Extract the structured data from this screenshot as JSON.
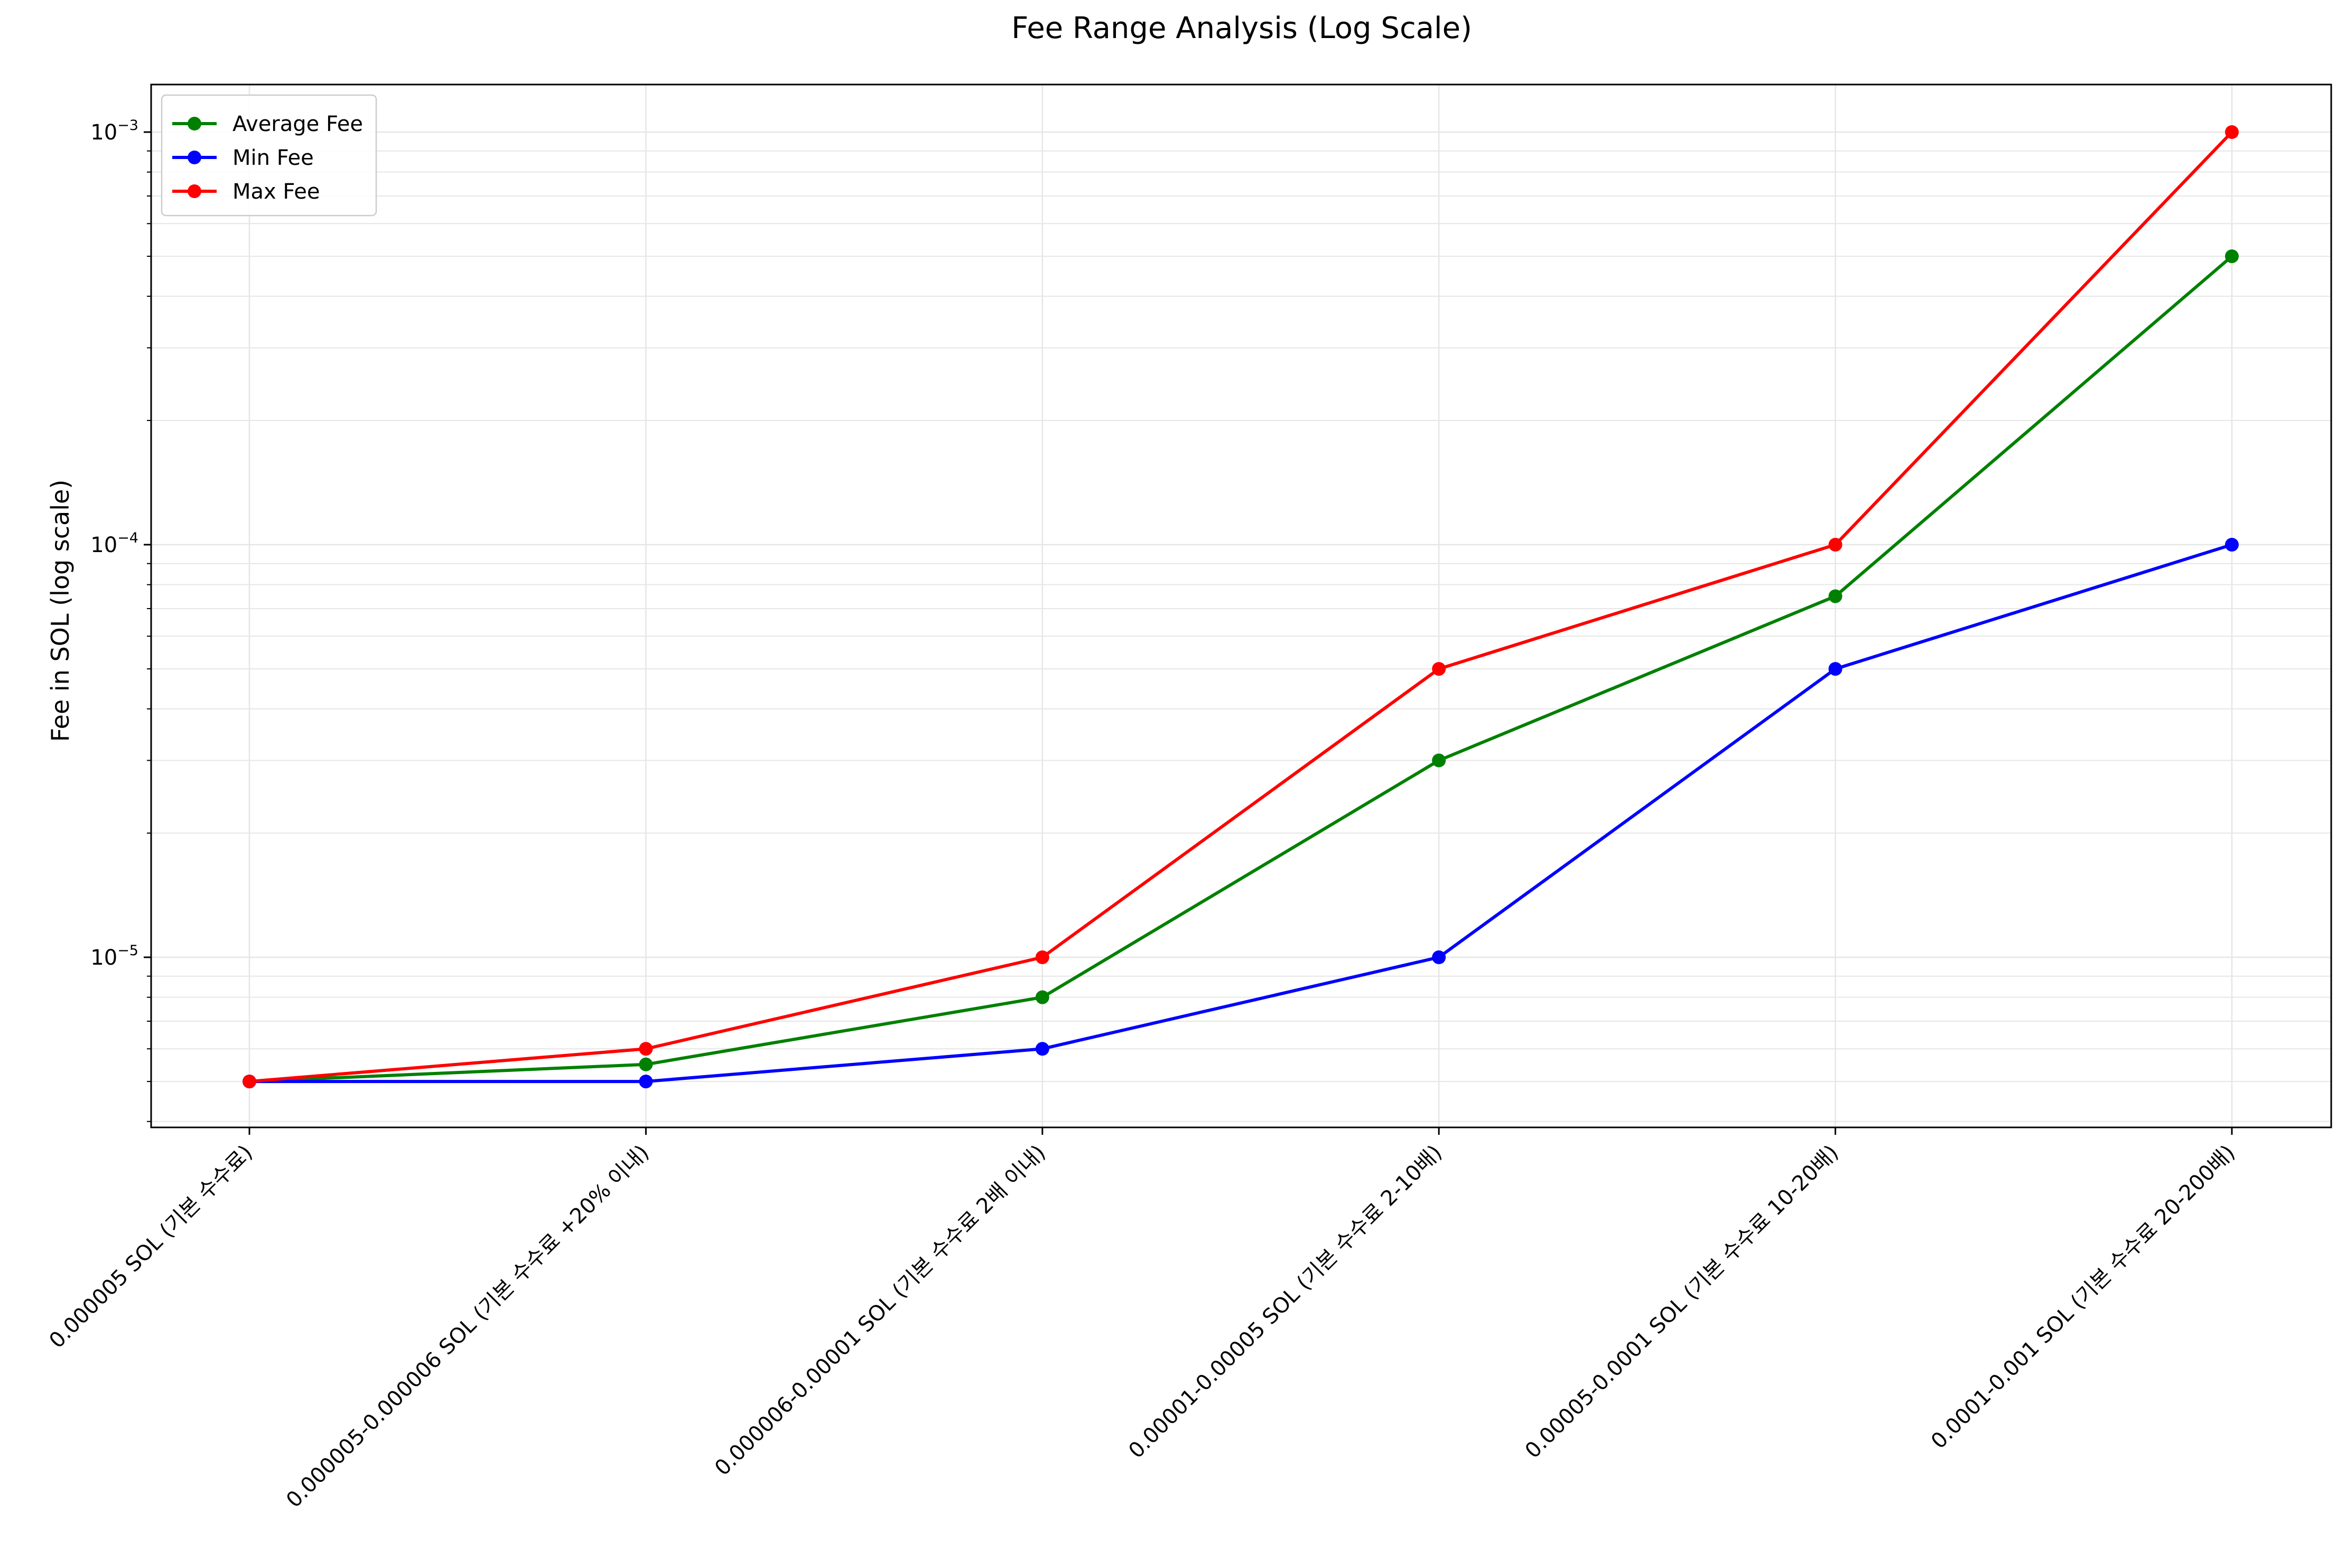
{
  "chart_data": {
    "type": "line",
    "title": "Fee Range Analysis (Log Scale)",
    "xlabel": "",
    "ylabel": "Fee in SOL (log scale)",
    "yscale": "log",
    "ylim": [
      3.8e-06,
      0.0013
    ],
    "grid": true,
    "legend_position": "top-left",
    "categories": [
      "0.000005 SOL (기본 수수료)",
      "0.000005-0.000006 SOL (기본 수수료 +20% 이내)",
      "0.000006-0.00001 SOL (기본 수수료 2배 이내)",
      "0.00001-0.00005 SOL (기본 수수료 2-10배)",
      "0.00005-0.0001 SOL (기본 수수료 10-20배)",
      "0.0001-0.001 SOL (기본 수수료 20-200배)"
    ],
    "series": [
      {
        "name": "Average Fee",
        "color": "#008000",
        "values": [
          5e-06,
          5.5e-06,
          8e-06,
          3e-05,
          7.5e-05,
          0.0005
        ]
      },
      {
        "name": "Min Fee",
        "color": "#0000ff",
        "values": [
          5e-06,
          5e-06,
          6e-06,
          1e-05,
          5e-05,
          0.0001
        ]
      },
      {
        "name": "Max Fee",
        "color": "#ff0000",
        "values": [
          5e-06,
          6e-06,
          1e-05,
          5e-05,
          0.0001,
          0.001
        ]
      }
    ],
    "y_major_ticks": [
      {
        "value": 0.001,
        "base": "10",
        "exp": "−3"
      },
      {
        "value": 0.0001,
        "base": "10",
        "exp": "−4"
      },
      {
        "value": 1e-05,
        "base": "10",
        "exp": "−5"
      }
    ]
  }
}
